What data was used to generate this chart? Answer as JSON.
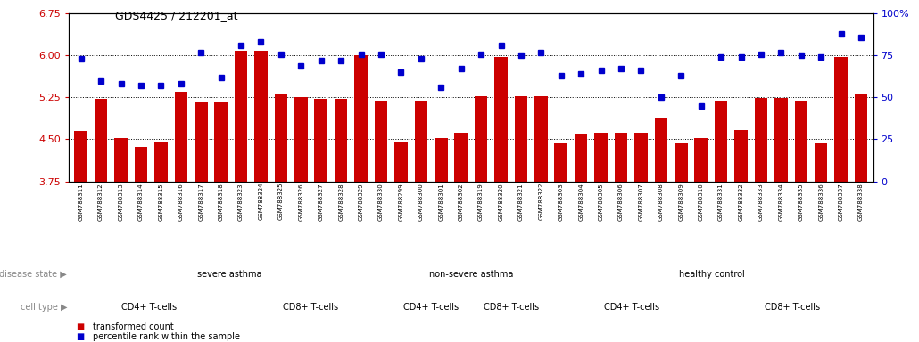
{
  "title": "GDS4425 / 212201_at",
  "samples": [
    "GSM788311",
    "GSM788312",
    "GSM788313",
    "GSM788314",
    "GSM788315",
    "GSM788316",
    "GSM788317",
    "GSM788318",
    "GSM788323",
    "GSM788324",
    "GSM788325",
    "GSM788326",
    "GSM788327",
    "GSM788328",
    "GSM788329",
    "GSM788330",
    "GSM788299",
    "GSM788300",
    "GSM788301",
    "GSM788302",
    "GSM788319",
    "GSM788320",
    "GSM788321",
    "GSM788322",
    "GSM788303",
    "GSM788304",
    "GSM788305",
    "GSM788306",
    "GSM788307",
    "GSM788308",
    "GSM788309",
    "GSM788310",
    "GSM788331",
    "GSM788332",
    "GSM788333",
    "GSM788334",
    "GSM788335",
    "GSM788336",
    "GSM788337",
    "GSM788338"
  ],
  "bar_values": [
    4.65,
    5.22,
    4.52,
    4.37,
    4.45,
    5.35,
    5.18,
    5.18,
    6.08,
    6.08,
    5.3,
    5.25,
    5.22,
    5.22,
    6.0,
    5.2,
    4.45,
    5.2,
    4.52,
    4.62,
    5.28,
    5.98,
    5.28,
    5.28,
    4.43,
    4.6,
    4.62,
    4.62,
    4.62,
    4.87,
    4.43,
    4.52,
    5.2,
    4.67,
    5.24,
    5.24,
    5.2,
    4.43,
    5.98,
    5.3
  ],
  "dot_values_pct": [
    73,
    60,
    58,
    57,
    57,
    58,
    77,
    62,
    81,
    83,
    76,
    69,
    72,
    72,
    76,
    76,
    65,
    73,
    56,
    67,
    76,
    81,
    75,
    77,
    63,
    64,
    66,
    67,
    66,
    50,
    63,
    45,
    74,
    74,
    76,
    77,
    75,
    74,
    88,
    86
  ],
  "ylim_left": [
    3.75,
    6.75
  ],
  "ylim_right": [
    0,
    100
  ],
  "yticks_left": [
    3.75,
    4.5,
    5.25,
    6.0,
    6.75
  ],
  "yticks_right": [
    0,
    25,
    50,
    75,
    100
  ],
  "bar_color": "#CC0000",
  "dot_color": "#0000CC",
  "background_color": "#FFFFFF",
  "disease_groups": [
    {
      "label": "severe asthma",
      "start": 0,
      "end": 15,
      "color": "#BBEEBB"
    },
    {
      "label": "non-severe asthma",
      "start": 16,
      "end": 23,
      "color": "#88DD88"
    },
    {
      "label": "healthy control",
      "start": 24,
      "end": 39,
      "color": "#55BB33"
    }
  ],
  "cell_groups": [
    {
      "label": "CD4+ T-cells",
      "start": 0,
      "end": 7,
      "color": "#CC55CC"
    },
    {
      "label": "CD8+ T-cells",
      "start": 8,
      "end": 15,
      "color": "#EE99EE"
    },
    {
      "label": "CD4+ T-cells",
      "start": 16,
      "end": 19,
      "color": "#CC55CC"
    },
    {
      "label": "CD8+ T-cells",
      "start": 20,
      "end": 23,
      "color": "#EE99EE"
    },
    {
      "label": "CD4+ T-cells",
      "start": 24,
      "end": 31,
      "color": "#CC55CC"
    },
    {
      "label": "CD8+ T-cells",
      "start": 32,
      "end": 39,
      "color": "#EE99EE"
    }
  ],
  "legend_items": [
    {
      "label": "transformed count",
      "color": "#CC0000"
    },
    {
      "label": "percentile rank within the sample",
      "color": "#0000CC"
    }
  ]
}
